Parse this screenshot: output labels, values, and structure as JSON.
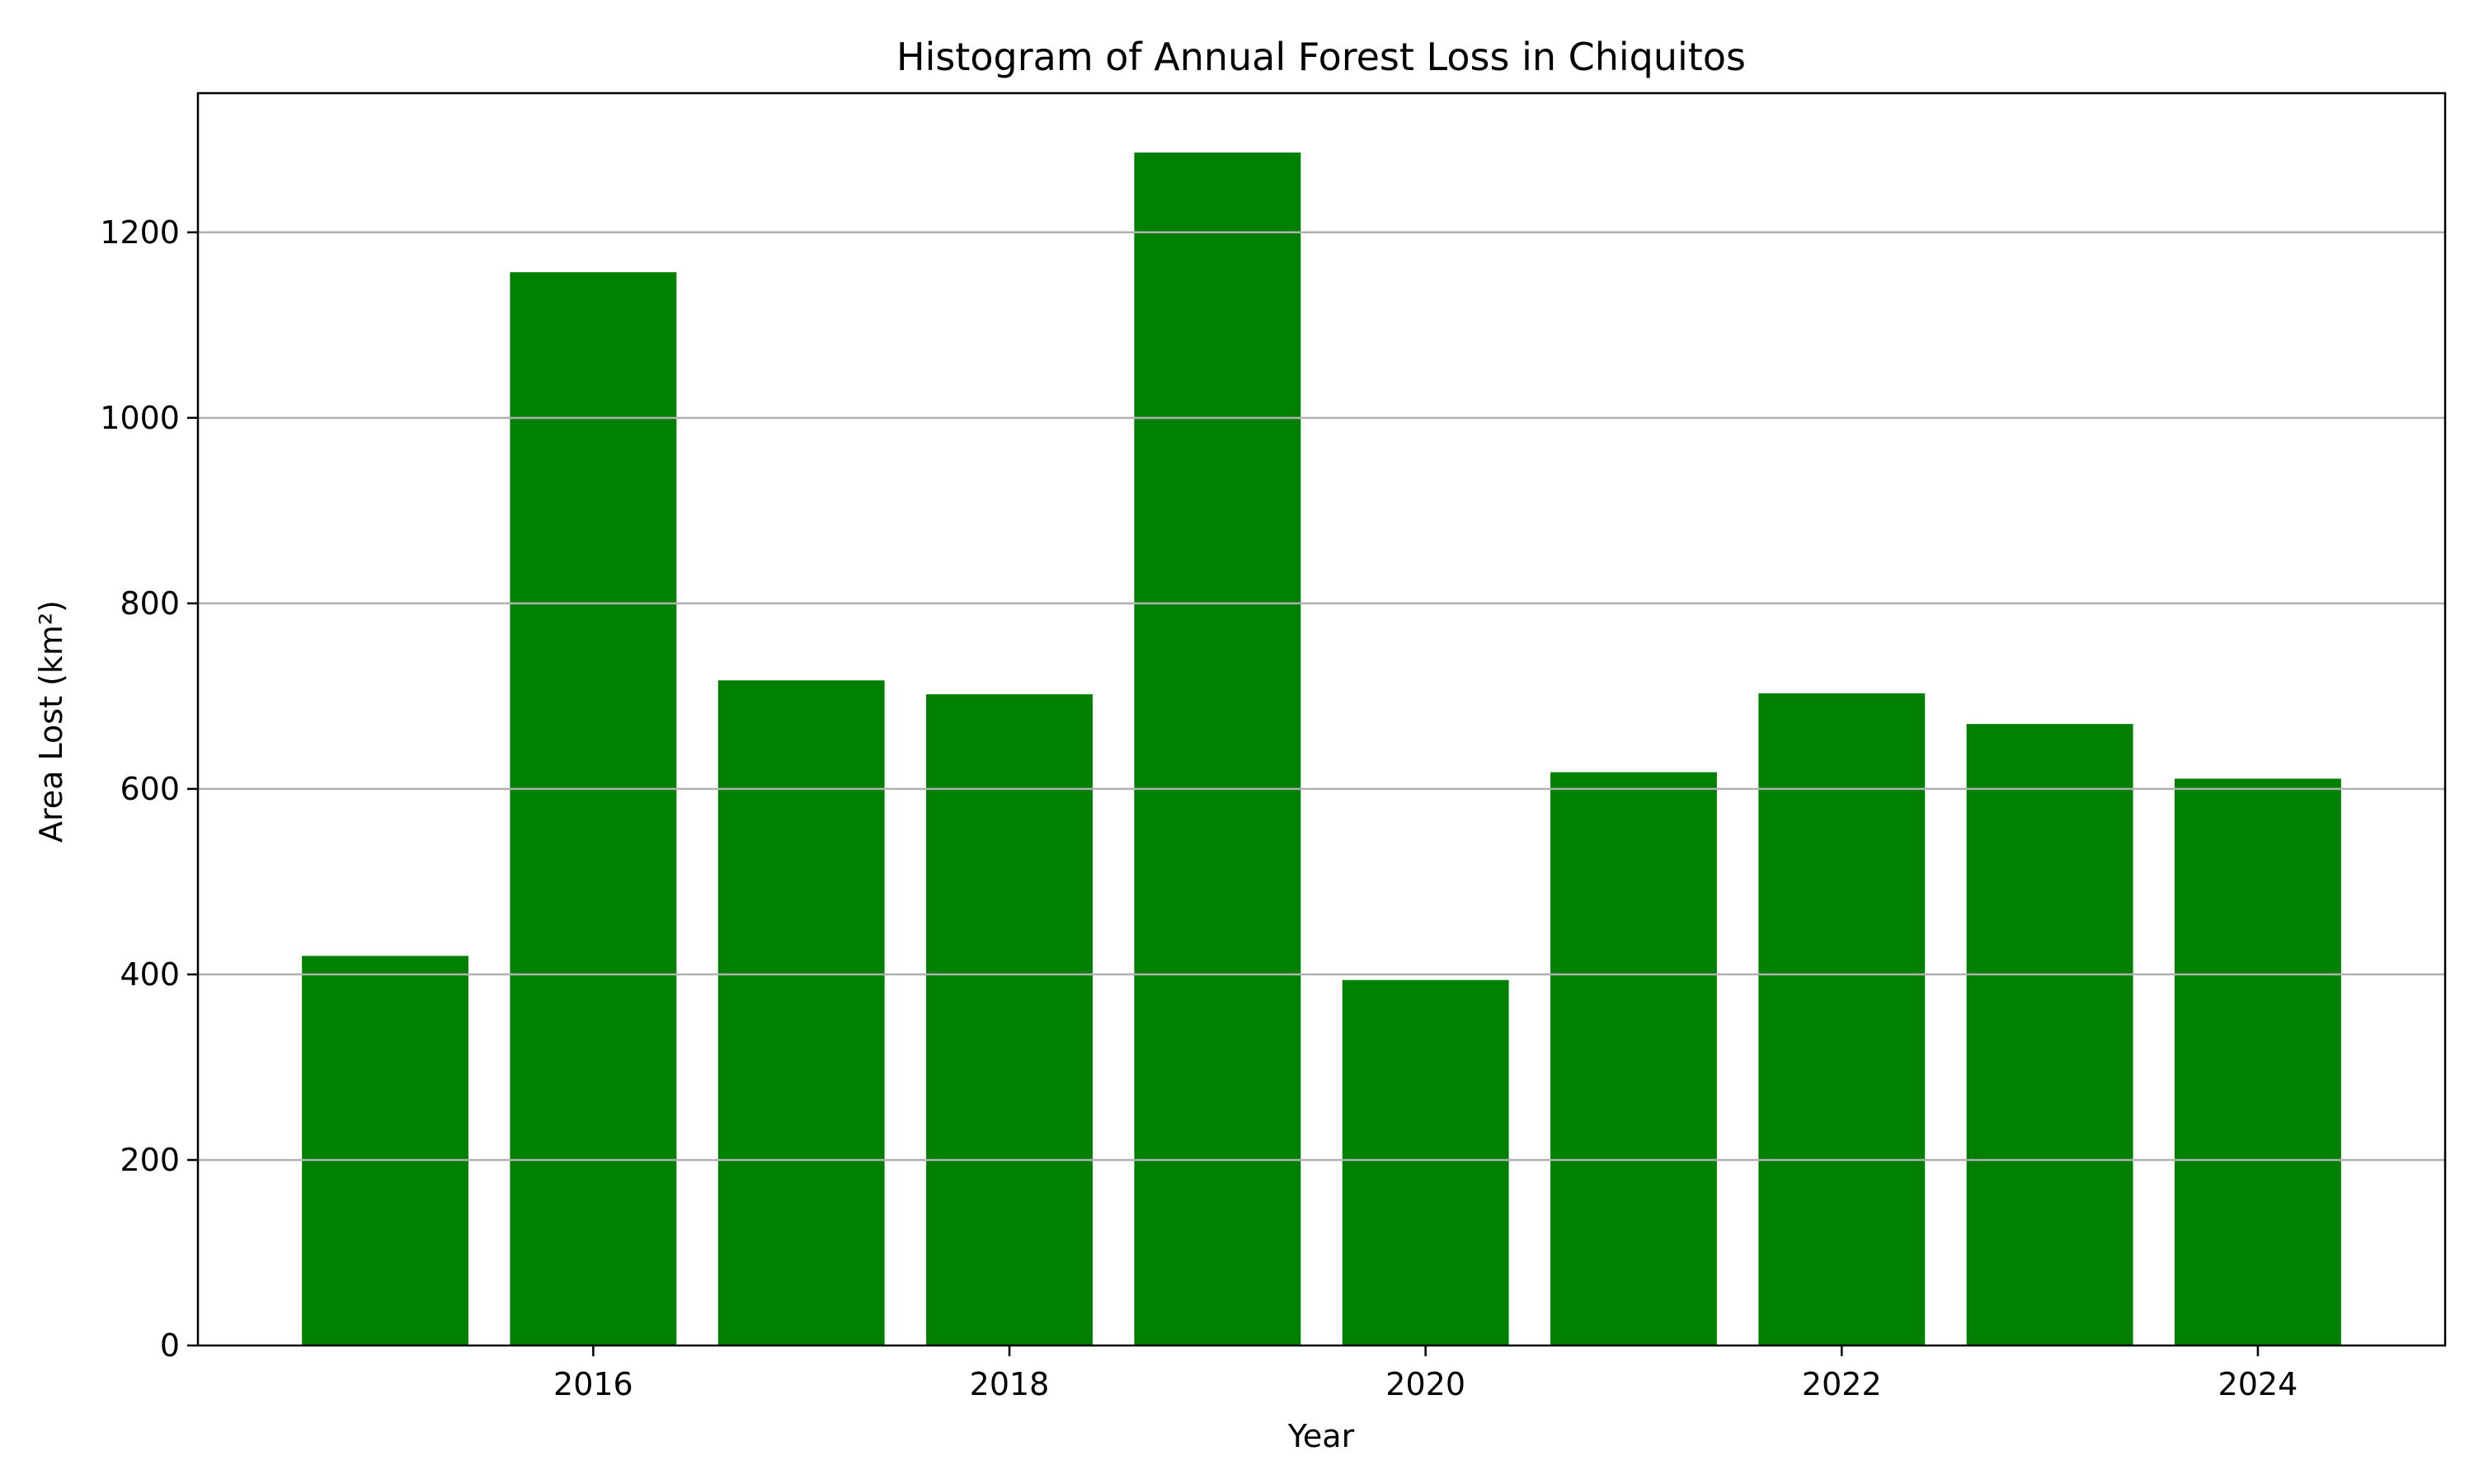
{
  "chart_data": {
    "type": "bar",
    "title": "Histogram of Annual Forest Loss in Chiquitos",
    "xlabel": "Year",
    "ylabel": "Area Lost (km²)",
    "x": [
      2015,
      2016,
      2017,
      2018,
      2019,
      2020,
      2021,
      2022,
      2023,
      2024
    ],
    "values": [
      420,
      1157,
      717,
      702,
      1286,
      394,
      618,
      703,
      670,
      611
    ],
    "bar_width": 0.8,
    "xlim": [
      2014.1,
      2024.9
    ],
    "ylim": [
      0,
      1350
    ],
    "xticks": [
      2016,
      2018,
      2020,
      2022,
      2024
    ],
    "yticks": [
      0,
      200,
      400,
      600,
      800,
      1000,
      1200
    ],
    "grid": "y-major",
    "legend": false,
    "colors": {
      "bar": "#008000",
      "grid": "#b0b0b0",
      "axis": "#000000",
      "background": "#ffffff"
    }
  }
}
